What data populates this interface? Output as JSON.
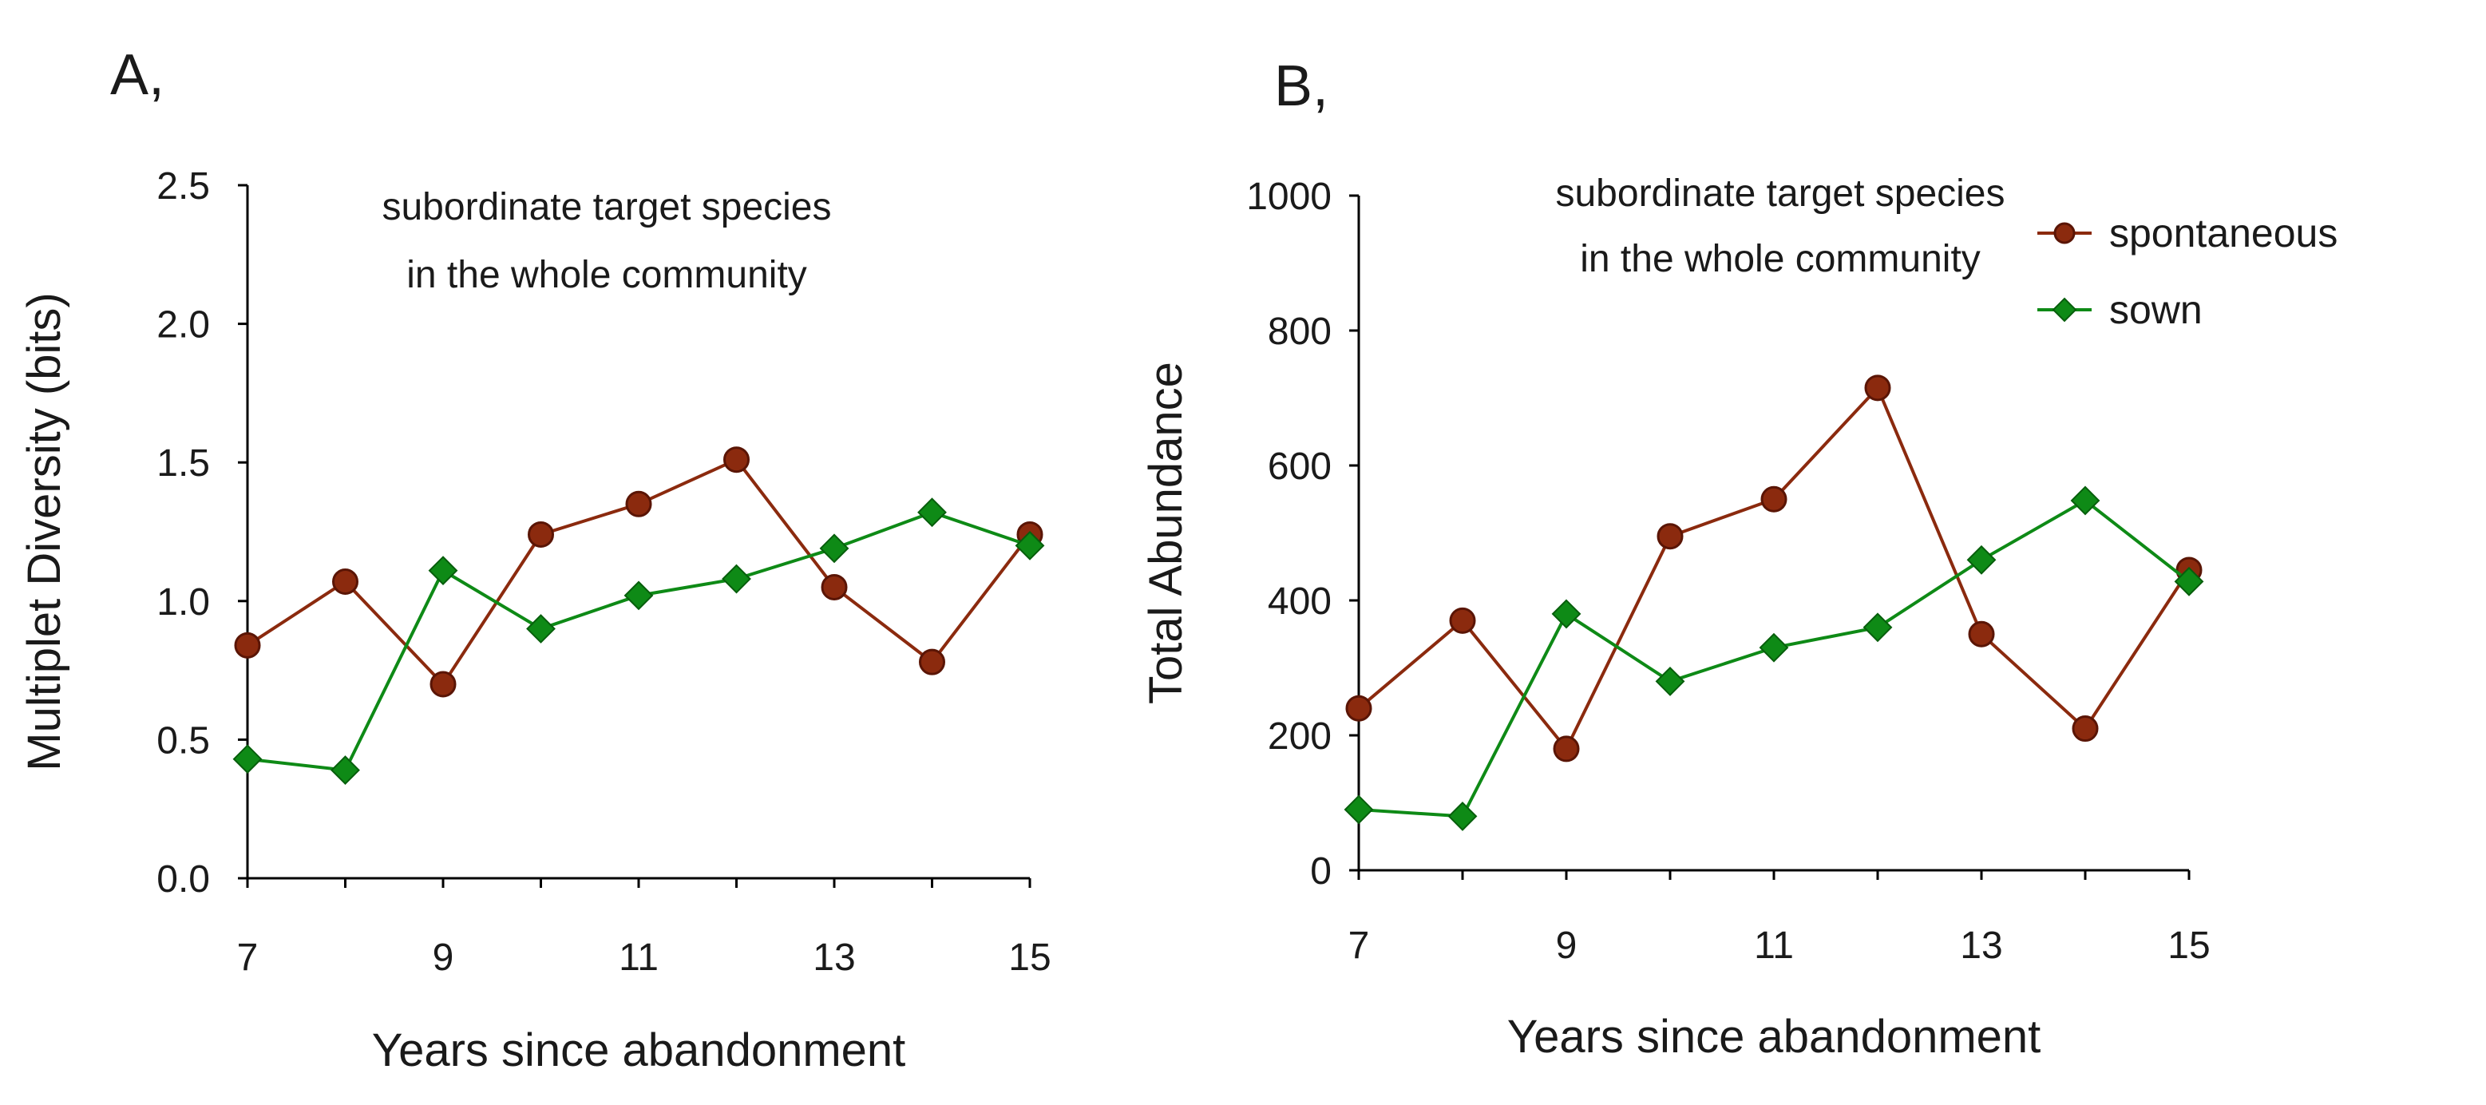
{
  "chart_data": [
    {
      "type": "line",
      "panel_label": "A,",
      "annotation": [
        "subordinate target species",
        "in the whole community"
      ],
      "xlabel": "Years since abandonment",
      "ylabel": "Multiplet Diversity (bits)",
      "xlim": [
        7,
        15
      ],
      "ylim": [
        0,
        2.5
      ],
      "xticks": [
        7,
        9,
        11,
        13,
        15
      ],
      "yticks": [
        "0.0",
        "0.5",
        "1.0",
        "1.5",
        "2.0",
        "2.5"
      ],
      "x": [
        7,
        8,
        9,
        10,
        11,
        12,
        13,
        14,
        15
      ],
      "series": [
        {
          "name": "spontaneous",
          "color": "#8b2a0e",
          "marker": "circle",
          "values": [
            0.84,
            1.07,
            0.7,
            1.24,
            1.35,
            1.51,
            1.05,
            0.78,
            1.24
          ]
        },
        {
          "name": "sown",
          "color": "#0e8a16",
          "marker": "diamond",
          "values": [
            0.43,
            0.39,
            1.11,
            0.9,
            1.02,
            1.08,
            1.19,
            1.32,
            1.2
          ]
        }
      ]
    },
    {
      "type": "line",
      "panel_label": "B,",
      "annotation": [
        "subordinate target species",
        "in the whole community"
      ],
      "xlabel": "Years since abandonment",
      "ylabel": "Total Abundance",
      "xlim": [
        7,
        15
      ],
      "ylim": [
        0,
        1000
      ],
      "xticks": [
        7,
        9,
        11,
        13,
        15
      ],
      "yticks": [
        "0",
        "200",
        "400",
        "600",
        "800",
        "1000"
      ],
      "x": [
        7,
        8,
        9,
        10,
        11,
        12,
        13,
        14,
        15
      ],
      "legend": {
        "position": "top-right",
        "entries": [
          "spontaneous",
          "sown"
        ]
      },
      "series": [
        {
          "name": "spontaneous",
          "color": "#8b2a0e",
          "marker": "circle",
          "values": [
            240,
            370,
            180,
            495,
            550,
            715,
            350,
            210,
            445
          ]
        },
        {
          "name": "sown",
          "color": "#0e8a16",
          "marker": "diamond",
          "values": [
            90,
            80,
            380,
            280,
            330,
            360,
            460,
            548,
            428
          ]
        }
      ]
    }
  ]
}
